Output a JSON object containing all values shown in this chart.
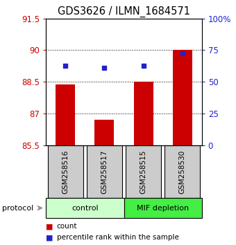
{
  "title": "GDS3626 / ILMN_1684571",
  "samples": [
    "GSM258516",
    "GSM258517",
    "GSM258515",
    "GSM258530"
  ],
  "bar_values": [
    88.38,
    86.72,
    88.5,
    90.02
  ],
  "percentile_values": [
    89.25,
    89.15,
    89.25,
    89.85
  ],
  "ylim_left": [
    85.5,
    91.5
  ],
  "ylim_right": [
    0,
    100
  ],
  "yticks_left": [
    85.5,
    87.0,
    88.5,
    90.0,
    91.5
  ],
  "yticks_right": [
    0,
    25,
    50,
    75,
    100
  ],
  "ytick_labels_left": [
    "85.5",
    "87",
    "88.5",
    "90",
    "91.5"
  ],
  "ytick_labels_right": [
    "0",
    "25",
    "50",
    "75",
    "100%"
  ],
  "bar_color": "#cc0000",
  "dot_color": "#2222cc",
  "bar_base": 85.5,
  "groups": [
    {
      "label": "control",
      "samples": [
        0,
        1
      ],
      "color": "#ccffcc"
    },
    {
      "label": "MIF depletion",
      "samples": [
        2,
        3
      ],
      "color": "#44ee44"
    }
  ],
  "protocol_label": "protocol",
  "legend_items": [
    {
      "label": "count",
      "color": "#cc0000"
    },
    {
      "label": "percentile rank within the sample",
      "color": "#2222cc"
    }
  ],
  "label_color_left": "#cc0000",
  "label_color_right": "#2222cc",
  "title_fontsize": 10.5,
  "tick_fontsize": 8.5
}
